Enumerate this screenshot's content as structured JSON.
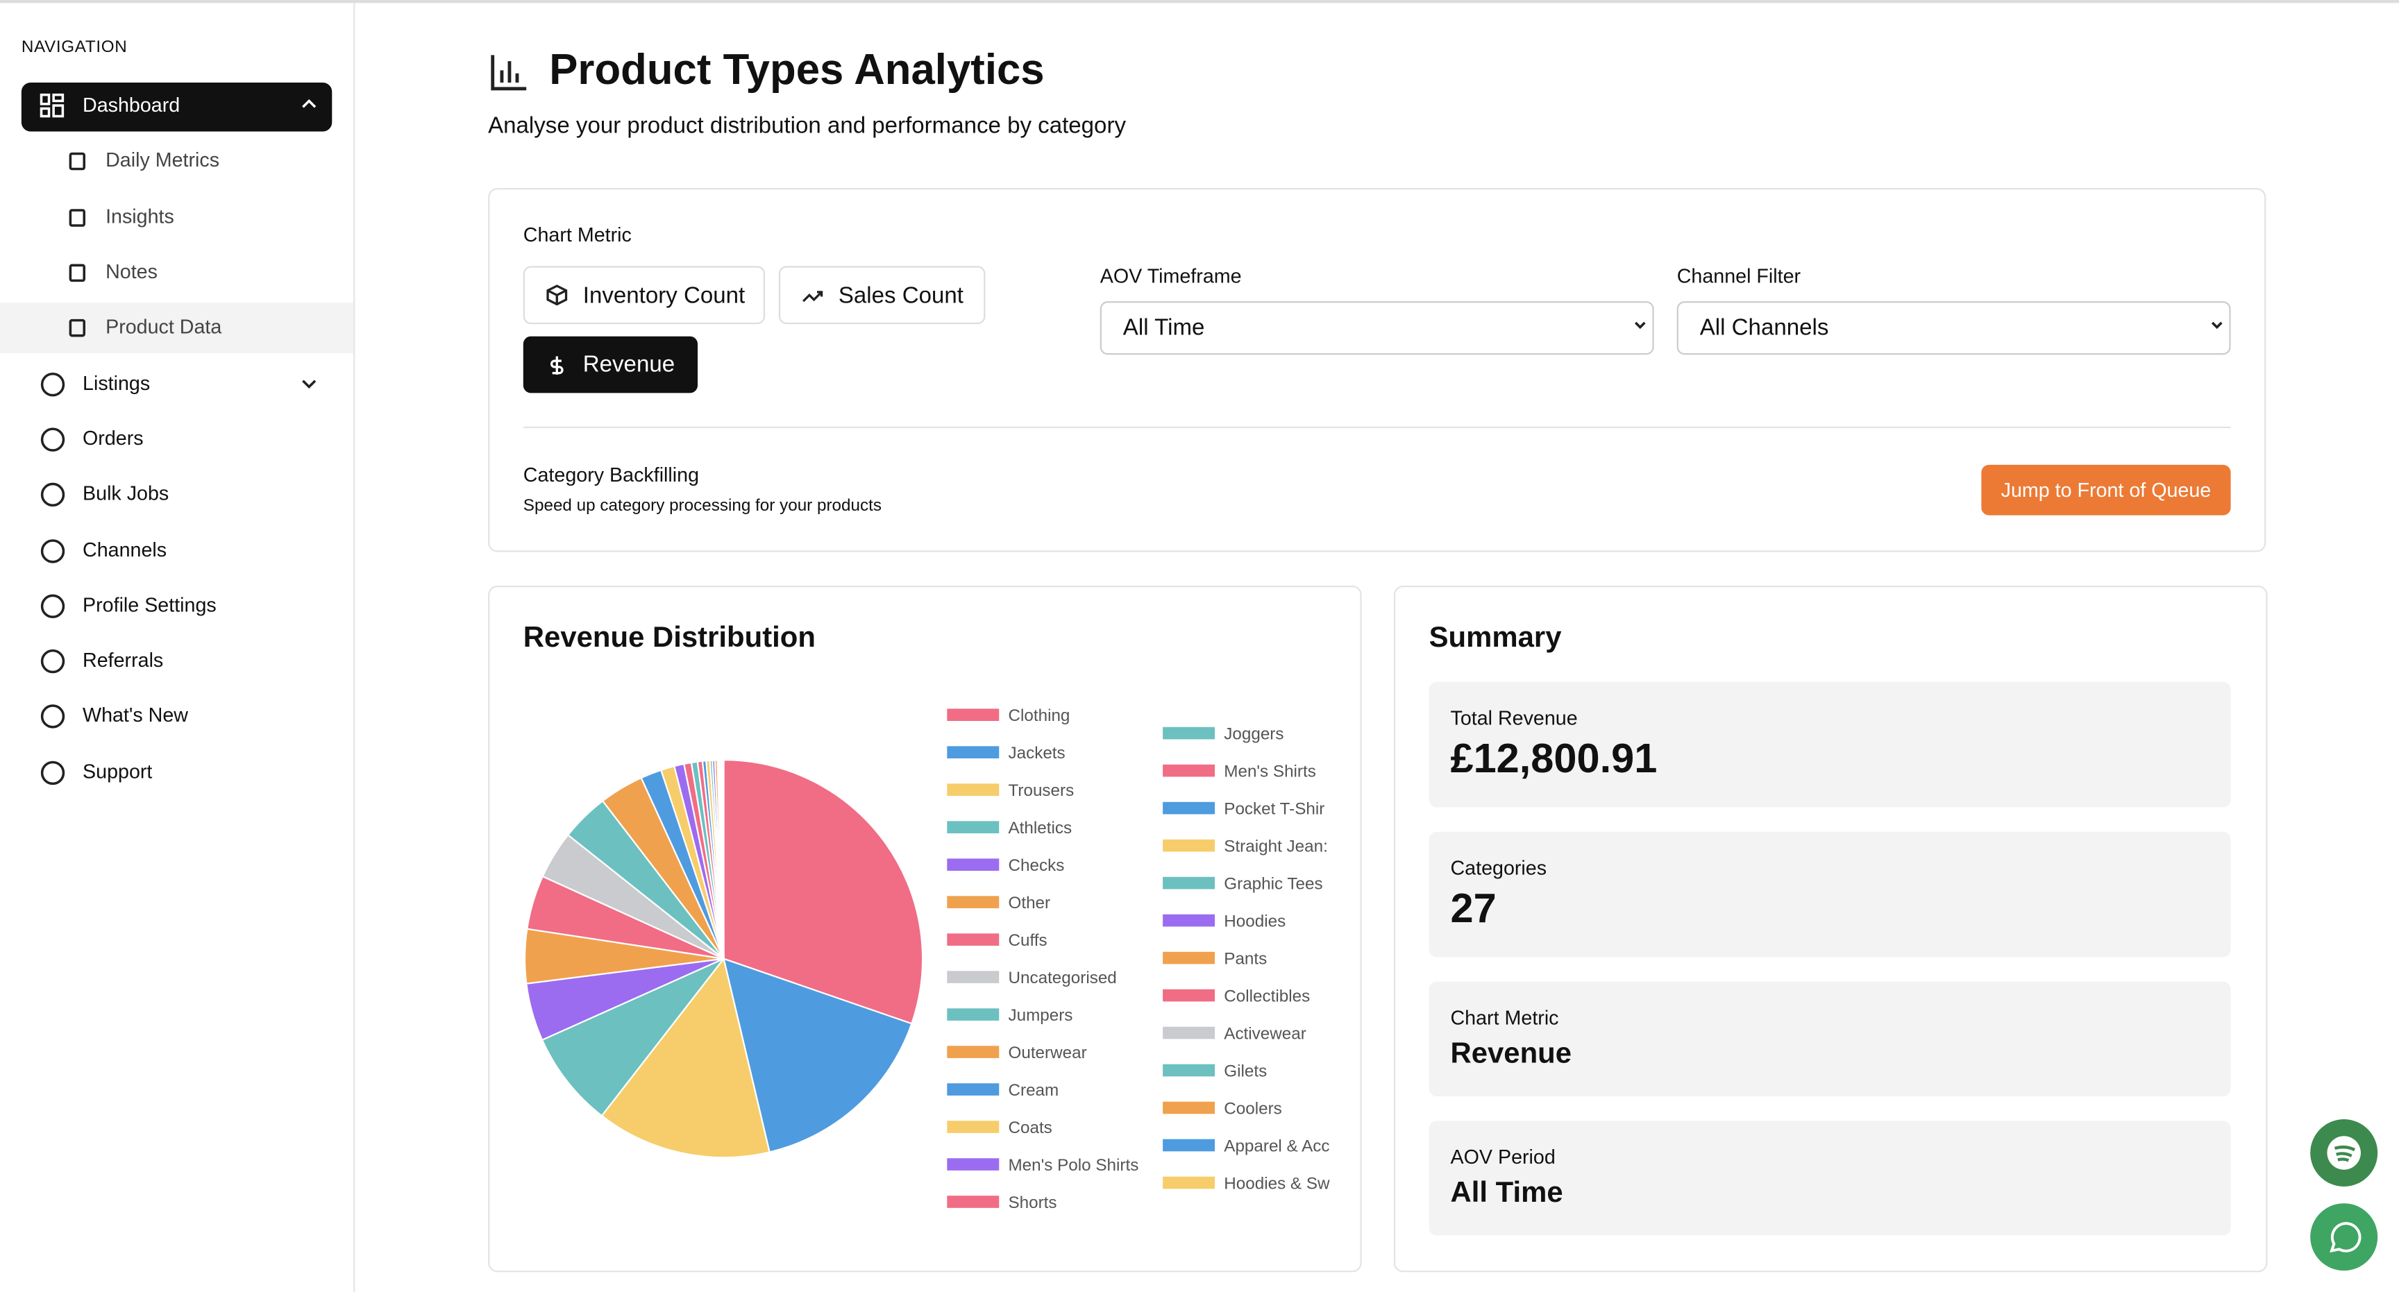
{
  "navigation": {
    "heading": "NAVIGATION",
    "items": [
      "Dashboard",
      "Daily Metrics",
      "Insights",
      "Notes",
      "Product Data",
      "Listings",
      "Orders",
      "Bulk Jobs",
      "Channels",
      "Profile Settings",
      "Referrals",
      "What's New",
      "Support"
    ]
  },
  "header": {
    "title": "Product Types Analytics",
    "subtitle": "Analyse your product distribution and performance by category"
  },
  "controls": {
    "chart_metric_label": "Chart Metric",
    "metric_buttons": [
      "Inventory Count",
      "Sales Count",
      "Revenue"
    ],
    "aov_label": "AOV Timeframe",
    "aov_value": "All Time",
    "channel_label": "Channel Filter",
    "channel_value": "All Channels",
    "backfill_title": "Category Backfilling",
    "backfill_description": "Speed up category processing for your products",
    "queue_button": "Jump to Front of Queue"
  },
  "chart_data": {
    "type": "pie",
    "title": "Revenue Distribution",
    "categories": [
      "Clothing",
      "Jackets",
      "Trousers",
      "Athletics",
      "Checks",
      "Other",
      "Cuffs",
      "Uncategorised",
      "Jumpers",
      "Outerwear",
      "Cream",
      "Coats",
      "Men's Polo Shirts",
      "Shorts",
      "Joggers",
      "Men's Shirts",
      "Pocket T-Shir",
      "Straight Jean:",
      "Graphic Tees",
      "Hoodies",
      "Pants",
      "Collectibles",
      "Activewear",
      "Gilets",
      "Coolers",
      "Apparel & Acc",
      "Hoodies & Sw"
    ],
    "values": [
      3878,
      2048,
      1818,
      998,
      602,
      563,
      563,
      499,
      499,
      461,
      218,
      141,
      102,
      77,
      64,
      51,
      38,
      38,
      26,
      26,
      26,
      13,
      13,
      13,
      13,
      6,
      6
    ],
    "colors": [
      "#f06d85",
      "#4e9be0",
      "#f6cd6a",
      "#6cc0c0",
      "#9b6cf0",
      "#f0a14e",
      "#f06d85",
      "#c9cbcf",
      "#6cc0c0",
      "#f0a14e",
      "#4e9be0",
      "#f6cd6a",
      "#9b6cf0",
      "#f06d85",
      "#6cc0c0",
      "#f06d85",
      "#4e9be0",
      "#f6cd6a",
      "#6cc0c0",
      "#9b6cf0",
      "#f0a14e",
      "#f06d85",
      "#c9cbcf",
      "#6cc0c0",
      "#f0a14e",
      "#4e9be0",
      "#f6cd6a"
    ]
  },
  "summary": {
    "title": "Summary",
    "cards": [
      {
        "label": "Total Revenue",
        "value": "£12,800.91"
      },
      {
        "label": "Categories",
        "value": "27"
      },
      {
        "label": "Chart Metric",
        "value": "Revenue"
      },
      {
        "label": "AOV Period",
        "value": "All Time"
      }
    ]
  }
}
